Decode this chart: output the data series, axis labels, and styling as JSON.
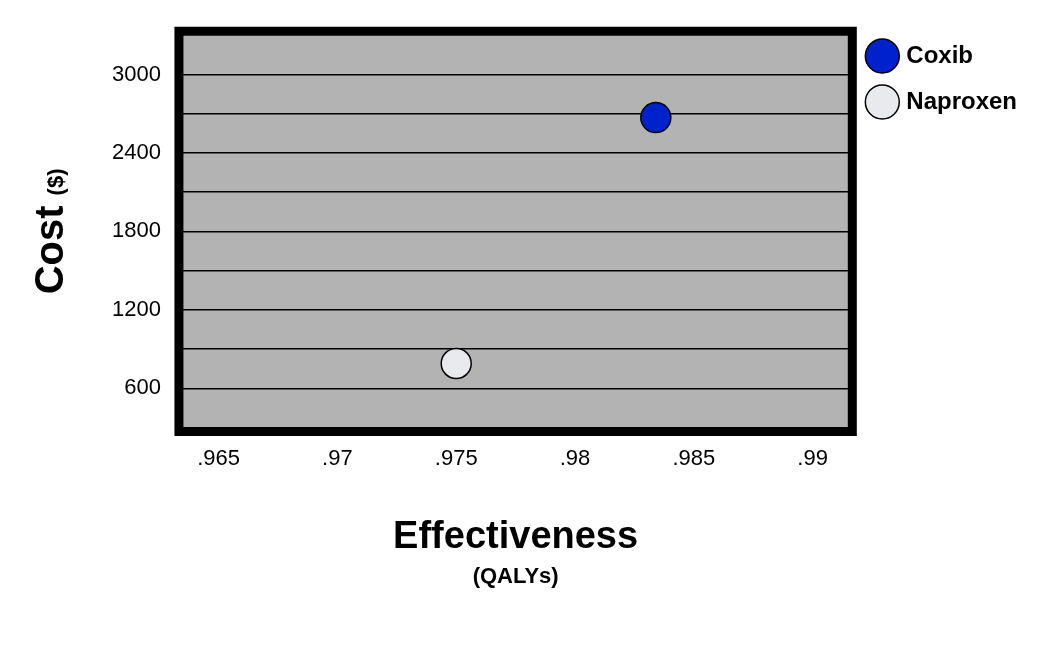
{
  "chart_data": {
    "type": "scatter",
    "xlabel": "Effectiveness\n(QALYs)",
    "ylabel": "Cost\n($)",
    "series": [
      {
        "name": "Coxib",
        "color": "#0022cc",
        "x": [
          0.9834
        ],
        "values": [
          2670
        ]
      },
      {
        "name": "Naproxen",
        "color": "#e8eaee",
        "x": [
          0.975
        ],
        "values": [
          790
        ]
      }
    ],
    "xlim": [
      0.9635,
      0.9915
    ],
    "xticks": [
      {
        "value": 0.965,
        "label": ".965"
      },
      {
        "value": 0.97,
        "label": ".97"
      },
      {
        "value": 0.975,
        "label": ".975"
      },
      {
        "value": 0.98,
        "label": ".98"
      },
      {
        "value": 0.985,
        "label": ".985"
      },
      {
        "value": 0.99,
        "label": ".99"
      }
    ],
    "ylim": [
      300,
      3300
    ],
    "yticks": [
      600,
      {
        "value": 900,
        "label": null
      },
      1200,
      {
        "value": 1500,
        "label": null
      },
      1800,
      {
        "value": 2100,
        "label": null
      },
      2400,
      {
        "value": 2700,
        "label": null
      },
      3000
    ],
    "grid": "y",
    "legend": "top right",
    "marker": "circle"
  }
}
